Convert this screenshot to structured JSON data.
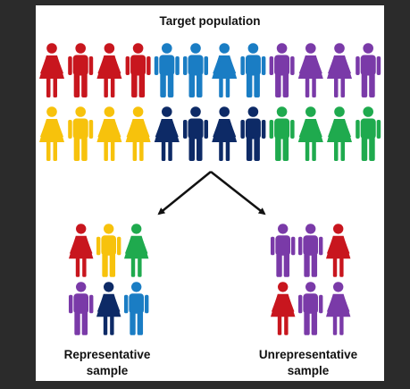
{
  "title": "Target population",
  "labels": {
    "representative": [
      "Representative",
      "sample"
    ],
    "unrepresentative": [
      "Unrepresentative",
      "sample"
    ]
  },
  "colors": {
    "red": "#c8161e",
    "blue": "#1a7dc4",
    "purple": "#7a3aa8",
    "yellow": "#f7c20c",
    "navy": "#0d2a66",
    "green": "#1faa4e",
    "arrow": "#111111",
    "frame": "#2b2b2b"
  },
  "population": {
    "row1": [
      {
        "gender": "f",
        "color": "red"
      },
      {
        "gender": "m",
        "color": "red"
      },
      {
        "gender": "f",
        "color": "red"
      },
      {
        "gender": "m",
        "color": "red"
      },
      {
        "gender": "m",
        "color": "blue"
      },
      {
        "gender": "m",
        "color": "blue"
      },
      {
        "gender": "f",
        "color": "blue"
      },
      {
        "gender": "m",
        "color": "blue"
      },
      {
        "gender": "m",
        "color": "purple"
      },
      {
        "gender": "f",
        "color": "purple"
      },
      {
        "gender": "f",
        "color": "purple"
      },
      {
        "gender": "m",
        "color": "purple"
      }
    ],
    "row2": [
      {
        "gender": "f",
        "color": "yellow"
      },
      {
        "gender": "m",
        "color": "yellow"
      },
      {
        "gender": "f",
        "color": "yellow"
      },
      {
        "gender": "f",
        "color": "yellow"
      },
      {
        "gender": "f",
        "color": "navy"
      },
      {
        "gender": "m",
        "color": "navy"
      },
      {
        "gender": "f",
        "color": "navy"
      },
      {
        "gender": "m",
        "color": "navy"
      },
      {
        "gender": "m",
        "color": "green"
      },
      {
        "gender": "f",
        "color": "green"
      },
      {
        "gender": "f",
        "color": "green"
      },
      {
        "gender": "m",
        "color": "green"
      }
    ]
  },
  "representative_sample": [
    {
      "gender": "f",
      "color": "red"
    },
    {
      "gender": "m",
      "color": "yellow"
    },
    {
      "gender": "f",
      "color": "green"
    },
    {
      "gender": "m",
      "color": "purple"
    },
    {
      "gender": "f",
      "color": "navy"
    },
    {
      "gender": "m",
      "color": "blue"
    }
  ],
  "unrepresentative_sample": [
    {
      "gender": "m",
      "color": "purple"
    },
    {
      "gender": "m",
      "color": "purple"
    },
    {
      "gender": "f",
      "color": "red"
    },
    {
      "gender": "f",
      "color": "red"
    },
    {
      "gender": "m",
      "color": "purple"
    },
    {
      "gender": "f",
      "color": "purple"
    }
  ]
}
